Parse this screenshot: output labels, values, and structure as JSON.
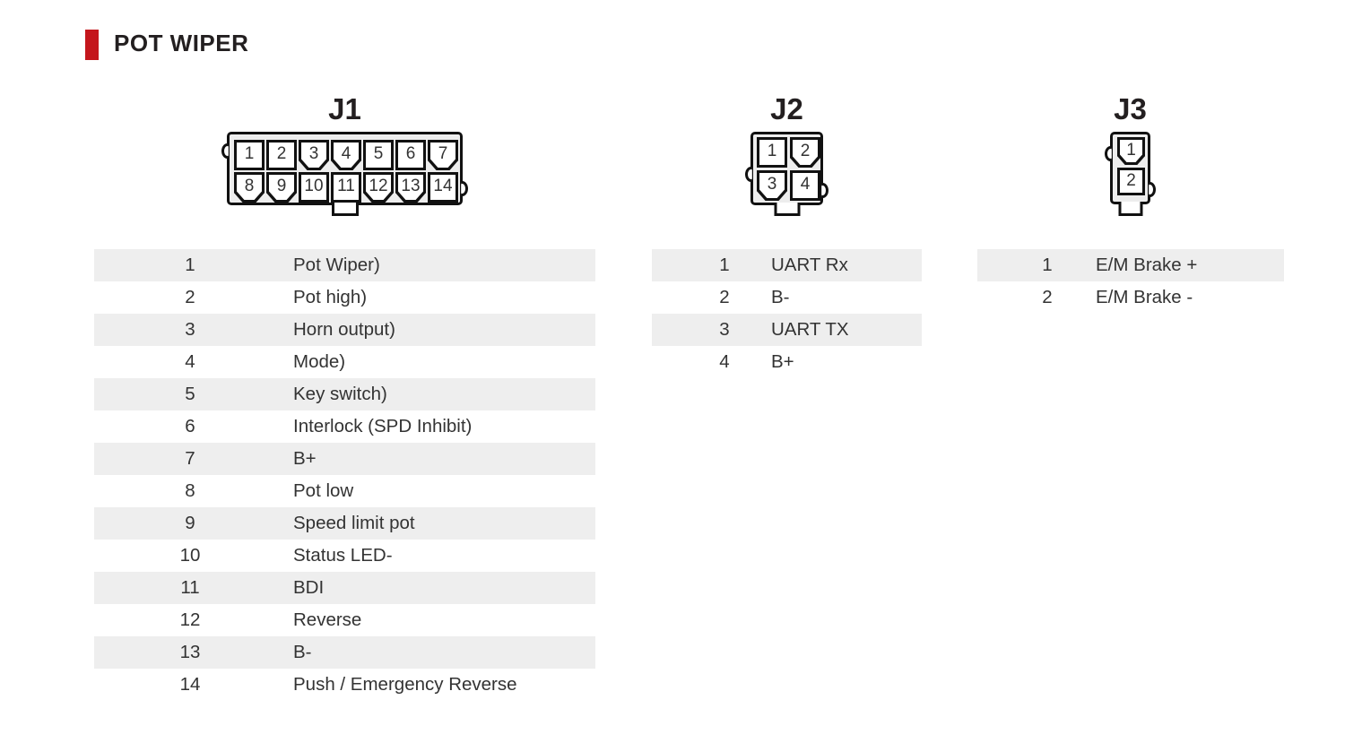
{
  "theme": {
    "accent": "#c4161c",
    "row_stripe": "#eeeeee"
  },
  "header": {
    "title": "POT WIPER"
  },
  "connectors": [
    {
      "name": "J1",
      "pins": [
        {
          "n": "1",
          "keyed": false
        },
        {
          "n": "2",
          "keyed": false
        },
        {
          "n": "3",
          "keyed": true
        },
        {
          "n": "4",
          "keyed": true
        },
        {
          "n": "5",
          "keyed": false
        },
        {
          "n": "6",
          "keyed": false
        },
        {
          "n": "7",
          "keyed": true
        },
        {
          "n": "8",
          "keyed": true
        },
        {
          "n": "9",
          "keyed": true
        },
        {
          "n": "10",
          "keyed": false
        },
        {
          "n": "11",
          "keyed": false
        },
        {
          "n": "12",
          "keyed": true
        },
        {
          "n": "13",
          "keyed": true
        },
        {
          "n": "14",
          "keyed": false
        }
      ],
      "table": [
        {
          "pin": "1",
          "label": "Pot Wiper)"
        },
        {
          "pin": "2",
          "label": "Pot high)"
        },
        {
          "pin": "3",
          "label": "Horn output)"
        },
        {
          "pin": "4",
          "label": "Mode)"
        },
        {
          "pin": "5",
          "label": "Key switch)"
        },
        {
          "pin": "6",
          "label": "Interlock (SPD Inhibit)"
        },
        {
          "pin": "7",
          "label": "B+"
        },
        {
          "pin": "8",
          "label": "Pot low"
        },
        {
          "pin": "9",
          "label": "Speed limit pot"
        },
        {
          "pin": "10",
          "label": "Status LED-"
        },
        {
          "pin": "11",
          "label": "BDI"
        },
        {
          "pin": "12",
          "label": "Reverse"
        },
        {
          "pin": "13",
          "label": "B-"
        },
        {
          "pin": "14",
          "label": "Push / Emergency Reverse"
        }
      ]
    },
    {
      "name": "J2",
      "pins": [
        {
          "n": "1",
          "keyed": false
        },
        {
          "n": "2",
          "keyed": true
        },
        {
          "n": "3",
          "keyed": true
        },
        {
          "n": "4",
          "keyed": false
        }
      ],
      "table": [
        {
          "pin": "1",
          "label": "UART Rx"
        },
        {
          "pin": "2",
          "label": "B-"
        },
        {
          "pin": "3",
          "label": "UART TX"
        },
        {
          "pin": "4",
          "label": "B+"
        }
      ]
    },
    {
      "name": "J3",
      "pins": [
        {
          "n": "1",
          "keyed": true
        },
        {
          "n": "2",
          "keyed": false
        }
      ],
      "table": [
        {
          "pin": "1",
          "label": "E/M Brake +"
        },
        {
          "pin": "2",
          "label": "E/M Brake -"
        }
      ]
    }
  ]
}
